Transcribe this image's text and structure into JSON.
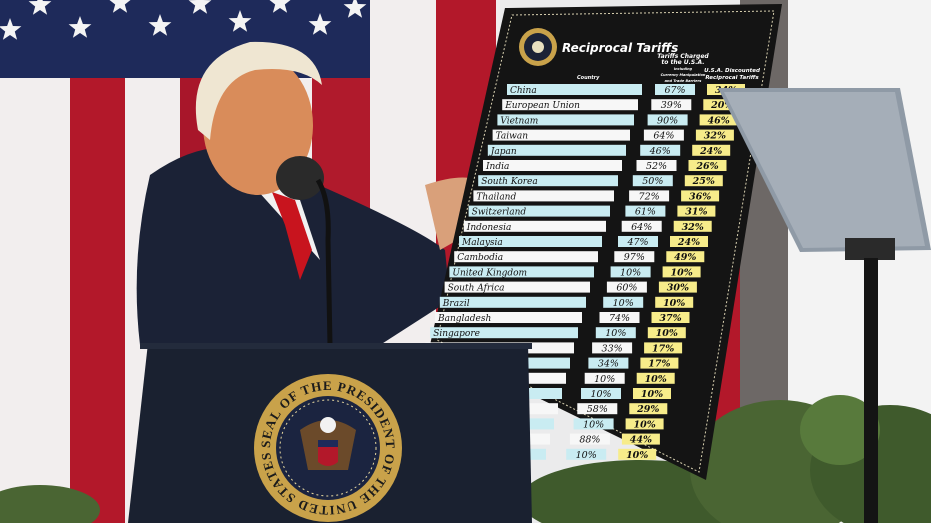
{
  "board": {
    "title": "Reciprocal Tariffs",
    "col_country": "Country",
    "col_charged": [
      "Tariffs Charged",
      "to the U.S.A.",
      "Including",
      "Currency Manipulation",
      "and Trade Barriers"
    ],
    "col_discounted": [
      "U.S.A. Discounted",
      "Reciprocal Tariffs"
    ],
    "rows": [
      {
        "country": "China",
        "charged": "67%",
        "discounted": "34%"
      },
      {
        "country": "European Union",
        "charged": "39%",
        "discounted": "20%"
      },
      {
        "country": "Vietnam",
        "charged": "90%",
        "discounted": "46%"
      },
      {
        "country": "Taiwan",
        "charged": "64%",
        "discounted": "32%"
      },
      {
        "country": "Japan",
        "charged": "46%",
        "discounted": "24%"
      },
      {
        "country": "India",
        "charged": "52%",
        "discounted": "26%"
      },
      {
        "country": "South Korea",
        "charged": "50%",
        "discounted": "25%"
      },
      {
        "country": "Thailand",
        "charged": "72%",
        "discounted": "36%"
      },
      {
        "country": "Switzerland",
        "charged": "61%",
        "discounted": "31%"
      },
      {
        "country": "Indonesia",
        "charged": "64%",
        "discounted": "32%"
      },
      {
        "country": "Malaysia",
        "charged": "47%",
        "discounted": "24%"
      },
      {
        "country": "Cambodia",
        "charged": "97%",
        "discounted": "49%"
      },
      {
        "country": "United Kingdom",
        "charged": "10%",
        "discounted": "10%"
      },
      {
        "country": "South Africa",
        "charged": "60%",
        "discounted": "30%"
      },
      {
        "country": "Brazil",
        "charged": "10%",
        "discounted": "10%"
      },
      {
        "country": "Bangladesh",
        "charged": "74%",
        "discounted": "37%"
      },
      {
        "country": "Singapore",
        "charged": "10%",
        "discounted": "10%"
      },
      {
        "country": null,
        "charged": "33%",
        "discounted": "17%"
      },
      {
        "country": null,
        "charged": "34%",
        "discounted": "17%"
      },
      {
        "country": null,
        "charged": "10%",
        "discounted": "10%"
      },
      {
        "country": null,
        "charged": "10%",
        "discounted": "10%"
      },
      {
        "country": null,
        "charged": "58%",
        "discounted": "29%"
      },
      {
        "country": null,
        "charged": "10%",
        "discounted": "10%"
      },
      {
        "country": null,
        "charged": "88%",
        "discounted": "44%"
      },
      {
        "country": null,
        "charged": "10%",
        "discounted": "10%"
      }
    ]
  },
  "podium": {
    "seal_text": "SEAL OF THE PRESIDENT OF THE UNITED STATES"
  },
  "colors": {
    "flag_red": "#b3182a",
    "flag_blue": "#1e2a5a",
    "board_black": "#141414",
    "country_blue": "#c9ecf2",
    "discount_yellow": "#f7ec8a",
    "seal_gold": "#c9a24a",
    "podium_navy": "#1a2130"
  }
}
